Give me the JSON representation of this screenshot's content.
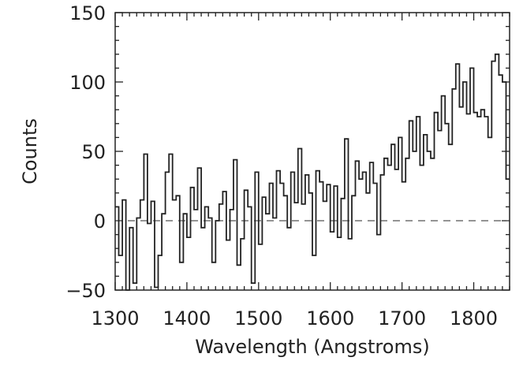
{
  "chart_data": {
    "type": "line",
    "style": "histogram-step",
    "title": "",
    "xlabel": "Wavelength (Angstroms)",
    "ylabel": "Counts",
    "xlim": [
      1300,
      1850
    ],
    "ylim": [
      -50,
      150
    ],
    "x_ticks": [
      1300,
      1400,
      1500,
      1600,
      1700,
      1800
    ],
    "x_tick_labels": [
      "1300",
      "1400",
      "1500",
      "1600",
      "1700",
      "1800"
    ],
    "y_ticks": [
      -50,
      0,
      50,
      100,
      150
    ],
    "y_tick_labels": [
      "−50",
      "0",
      "50",
      "100",
      "150"
    ],
    "x_minor_step": 10,
    "y_minor_step": 10,
    "grid": false,
    "reference_line": {
      "y": 0,
      "style": "dashed"
    },
    "bin_start": 1300,
    "bin_width": 5,
    "series": [
      {
        "name": "Counts",
        "color": "#222222",
        "values": [
          10,
          -25,
          15,
          -50,
          -5,
          -45,
          2,
          15,
          48,
          -2,
          14,
          -48,
          -25,
          5,
          35,
          48,
          15,
          18,
          -30,
          5,
          -12,
          24,
          8,
          38,
          -5,
          10,
          2,
          -30,
          0,
          12,
          21,
          -14,
          8,
          44,
          -32,
          -13,
          22,
          10,
          -45,
          35,
          -17,
          17,
          5,
          27,
          2,
          36,
          27,
          18,
          -5,
          35,
          13,
          52,
          12,
          33,
          20,
          -25,
          36,
          28,
          14,
          26,
          -8,
          25,
          -12,
          16,
          59,
          -13,
          18,
          43,
          30,
          35,
          20,
          42,
          27,
          -10,
          33,
          45,
          40,
          55,
          37,
          60,
          28,
          45,
          72,
          50,
          75,
          40,
          62,
          50,
          45,
          78,
          65,
          90,
          70,
          55,
          95,
          113,
          82,
          100,
          77,
          110,
          78,
          75,
          80,
          75,
          60,
          115,
          120,
          105,
          100,
          30
        ]
      }
    ]
  }
}
